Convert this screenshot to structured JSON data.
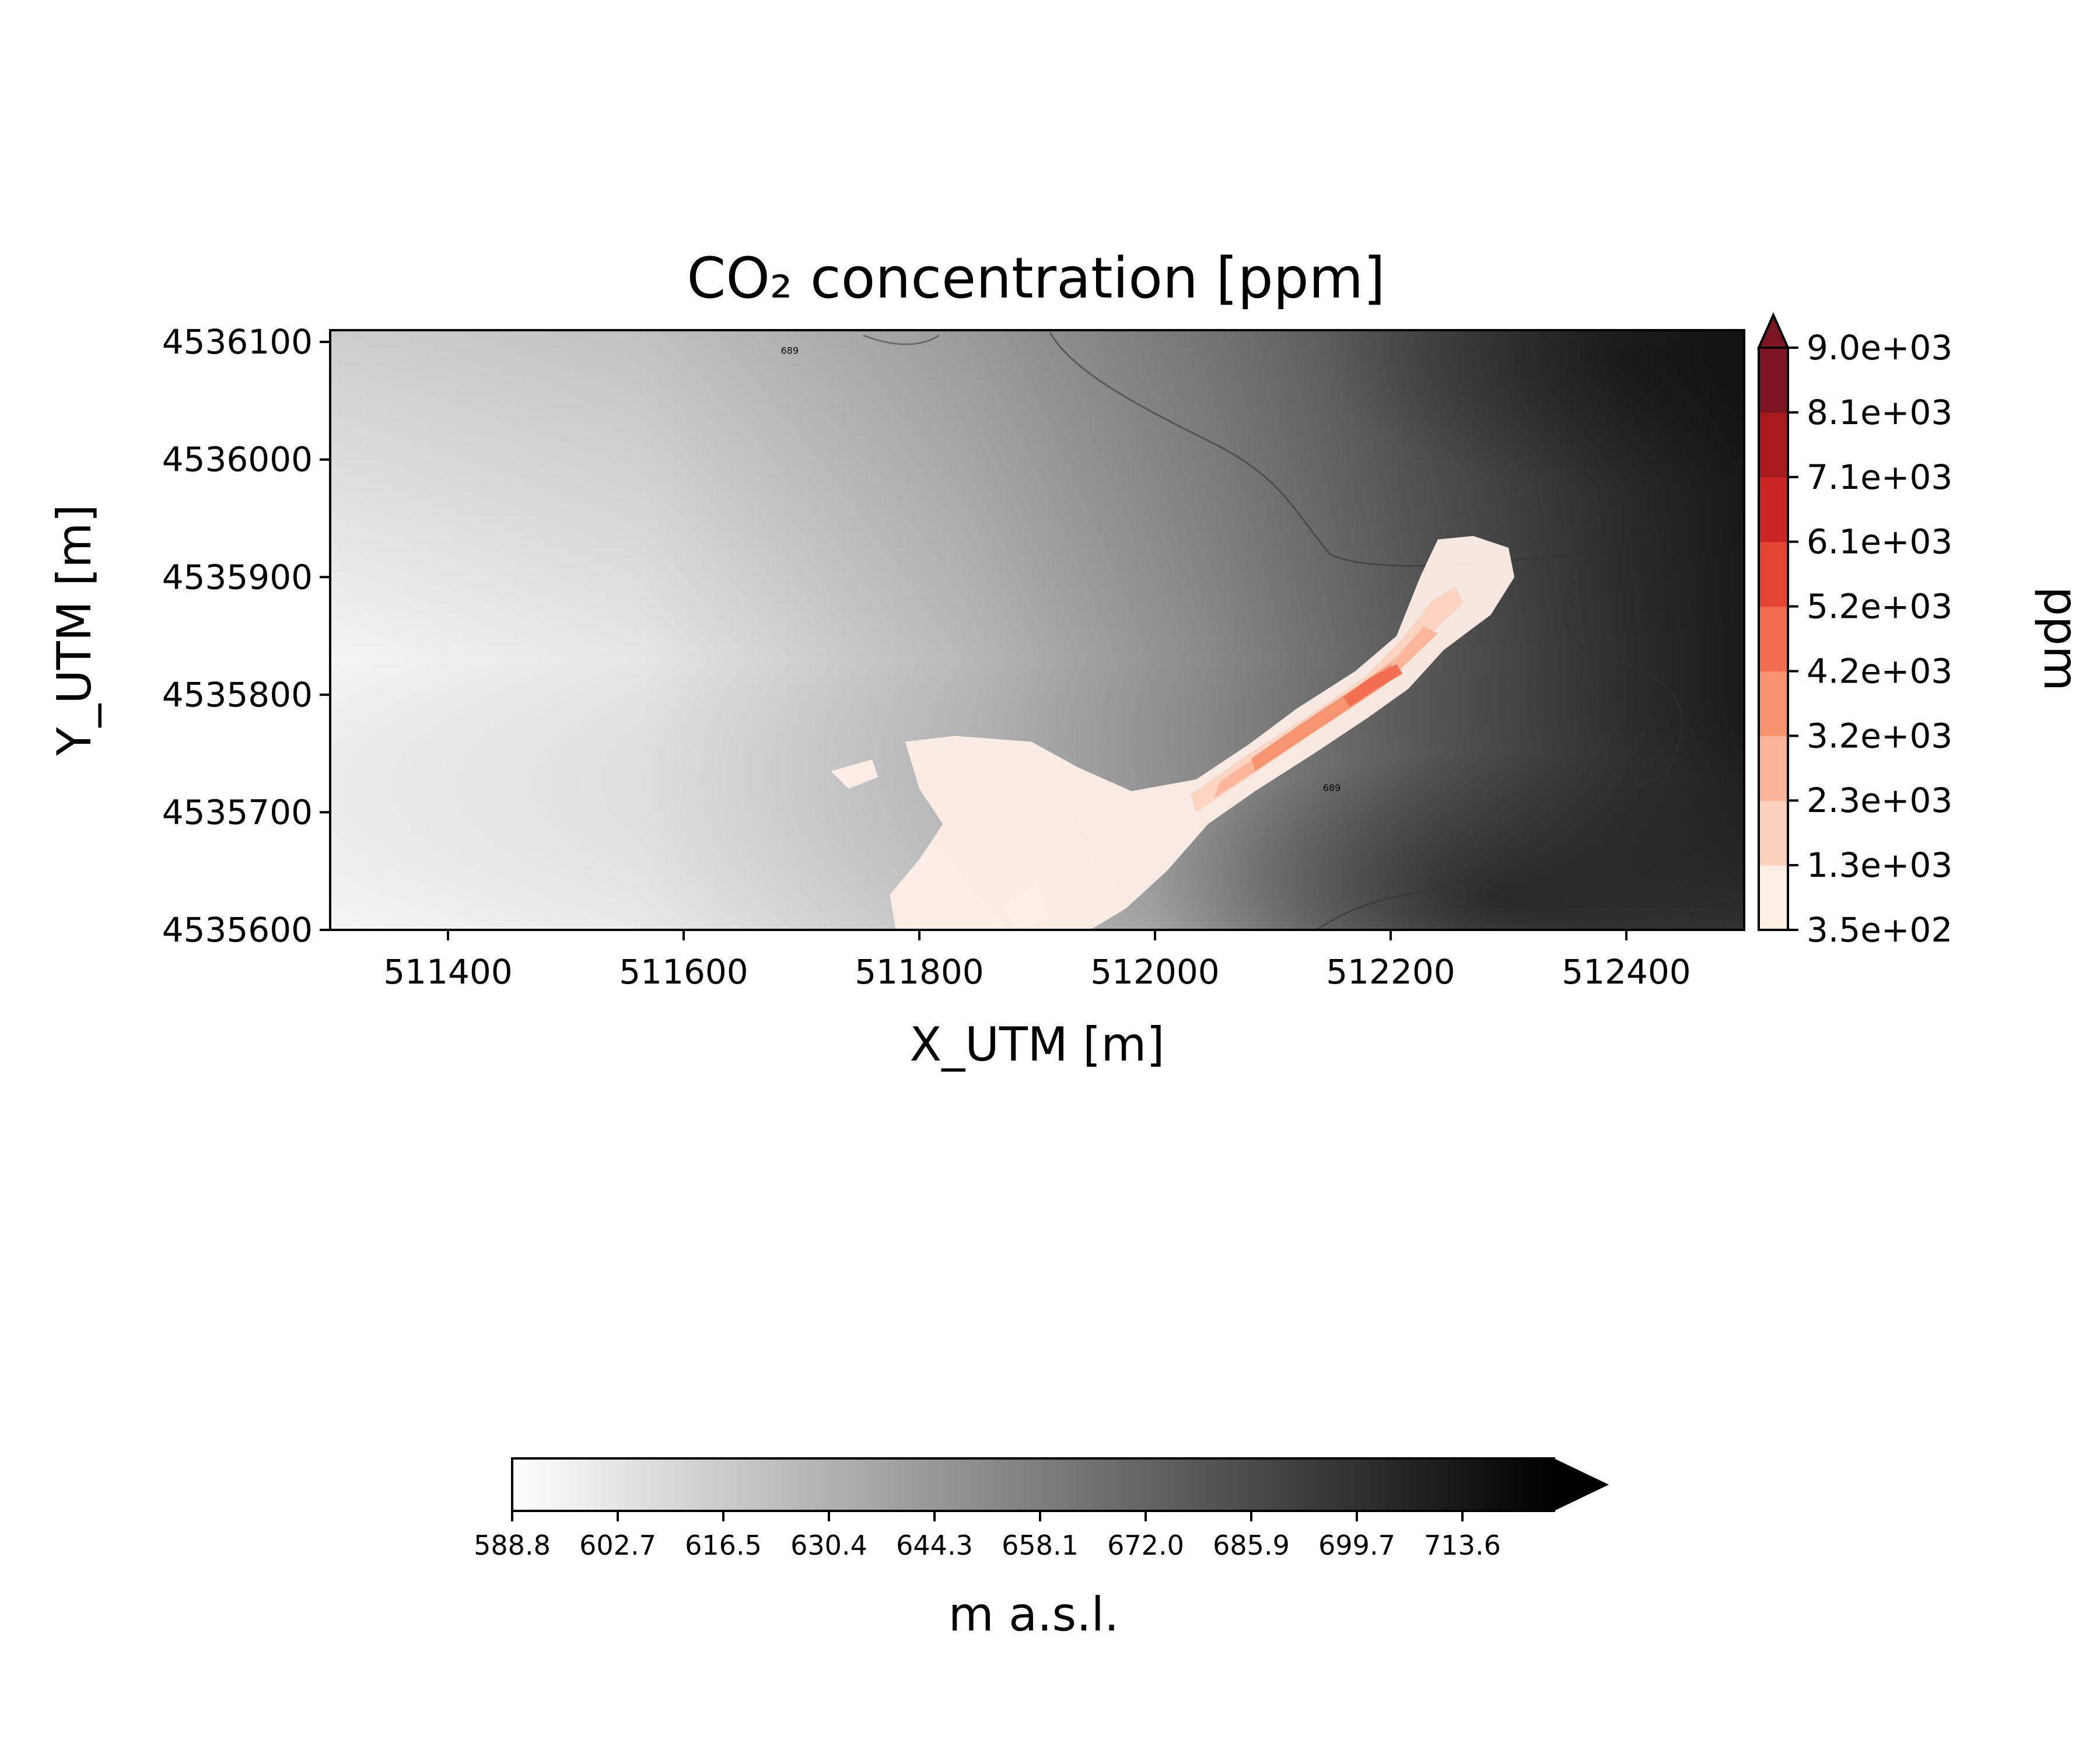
{
  "chart_data": {
    "type": "heatmap",
    "title": "CO₂ concentration [ppm]",
    "xlabel": "X_UTM [m]",
    "ylabel": "Y_UTM [m]",
    "xlim": [
      511300,
      512500
    ],
    "ylim": [
      4535600,
      4536110
    ],
    "x_ticks": [
      "511400",
      "511600",
      "511800",
      "512000",
      "512200",
      "512400"
    ],
    "x_tick_values": [
      511400,
      511600,
      511800,
      512000,
      512200,
      512400
    ],
    "y_ticks": [
      "4535600",
      "4535700",
      "4535800",
      "4535900",
      "4536000",
      "4536100"
    ],
    "y_tick_values": [
      4535600,
      4535700,
      4535800,
      4535900,
      4536000,
      4536100
    ],
    "contour_labels": [
      {
        "text": "689",
        "x": 511690,
        "y": 4536090
      },
      {
        "text": "689",
        "x": 512150,
        "y": 4535718
      }
    ],
    "co2_colorbar": {
      "label": "ppm",
      "extend": "max",
      "levels": [
        "3.5e+02",
        "1.3e+03",
        "2.3e+03",
        "3.2e+03",
        "4.2e+03",
        "5.2e+03",
        "6.1e+03",
        "7.1e+03",
        "8.1e+03",
        "9.0e+03"
      ],
      "colors": [
        "#fdeee6",
        "#fcd2bf",
        "#fbb49a",
        "#f7936f",
        "#f26c4f",
        "#e44532",
        "#c92522",
        "#a71a1d",
        "#7d1421"
      ]
    },
    "elevation_colorbar": {
      "label": "m a.s.l.",
      "extend": "max",
      "ticks": [
        "588.8",
        "602.7",
        "616.5",
        "630.4",
        "644.3",
        "658.1",
        "672.0",
        "685.9",
        "699.7",
        "713.6"
      ],
      "colors": [
        "#ffffff",
        "#000000"
      ]
    },
    "plume_regions": [
      {
        "level": 0,
        "points": [
          [
            511780,
            4535600
          ],
          [
            511945,
            4535600
          ],
          [
            511975,
            4535618
          ],
          [
            512010,
            4535650
          ],
          [
            512045,
            4535690
          ],
          [
            512085,
            4535718
          ],
          [
            512135,
            4535750
          ],
          [
            512180,
            4535780
          ],
          [
            512215,
            4535805
          ],
          [
            512245,
            4535838
          ],
          [
            512285,
            4535868
          ],
          [
            512305,
            4535900
          ],
          [
            512300,
            4535925
          ],
          [
            512270,
            4535935
          ],
          [
            512240,
            4535932
          ],
          [
            512225,
            4535900
          ],
          [
            512205,
            4535850
          ],
          [
            512170,
            4535820
          ],
          [
            512120,
            4535788
          ],
          [
            512080,
            4535758
          ],
          [
            512035,
            4535728
          ],
          [
            511980,
            4535718
          ],
          [
            511935,
            4535738
          ],
          [
            511895,
            4535760
          ],
          [
            511830,
            4535765
          ],
          [
            511788,
            4535760
          ],
          [
            511800,
            4535720
          ],
          [
            511820,
            4535690
          ],
          [
            511800,
            4535660
          ],
          [
            511775,
            4535630
          ]
        ]
      },
      {
        "level": 1,
        "points": [
          [
            512035,
            4535700
          ],
          [
            512080,
            4535730
          ],
          [
            512130,
            4535765
          ],
          [
            512175,
            4535795
          ],
          [
            512215,
            4535828
          ],
          [
            512240,
            4535858
          ],
          [
            512262,
            4535878
          ],
          [
            512255,
            4535892
          ],
          [
            512235,
            4535880
          ],
          [
            512210,
            4535848
          ],
          [
            512178,
            4535815
          ],
          [
            512130,
            4535782
          ],
          [
            512080,
            4535750
          ],
          [
            512030,
            4535715
          ]
        ]
      },
      {
        "level": 2,
        "points": [
          [
            512050,
            4535712
          ],
          [
            512100,
            4535745
          ],
          [
            512150,
            4535778
          ],
          [
            512195,
            4535808
          ],
          [
            512225,
            4535838
          ],
          [
            512240,
            4535852
          ],
          [
            512228,
            4535858
          ],
          [
            512205,
            4535832
          ],
          [
            512160,
            4535798
          ],
          [
            512105,
            4535760
          ],
          [
            512055,
            4535726
          ]
        ]
      },
      {
        "level": 3,
        "points": [
          [
            512085,
            4535735
          ],
          [
            512130,
            4535765
          ],
          [
            512175,
            4535795
          ],
          [
            512205,
            4535816
          ],
          [
            512200,
            4535826
          ],
          [
            512170,
            4535806
          ],
          [
            512125,
            4535776
          ],
          [
            512082,
            4535746
          ]
        ]
      },
      {
        "level": 4,
        "points": [
          [
            512165,
            4535790
          ],
          [
            512190,
            4535806
          ],
          [
            512210,
            4535818
          ],
          [
            512205,
            4535826
          ],
          [
            512182,
            4535814
          ],
          [
            512160,
            4535798
          ]
        ]
      },
      {
        "level": 0,
        "points": [
          [
            511725,
            4535735
          ],
          [
            511760,
            4535745
          ],
          [
            511765,
            4535730
          ],
          [
            511740,
            4535720
          ]
        ]
      },
      {
        "level": 0,
        "points": [
          [
            511870,
            4535620
          ],
          [
            511900,
            4535640
          ],
          [
            511910,
            4535610
          ],
          [
            511885,
            4535600
          ]
        ]
      }
    ]
  }
}
